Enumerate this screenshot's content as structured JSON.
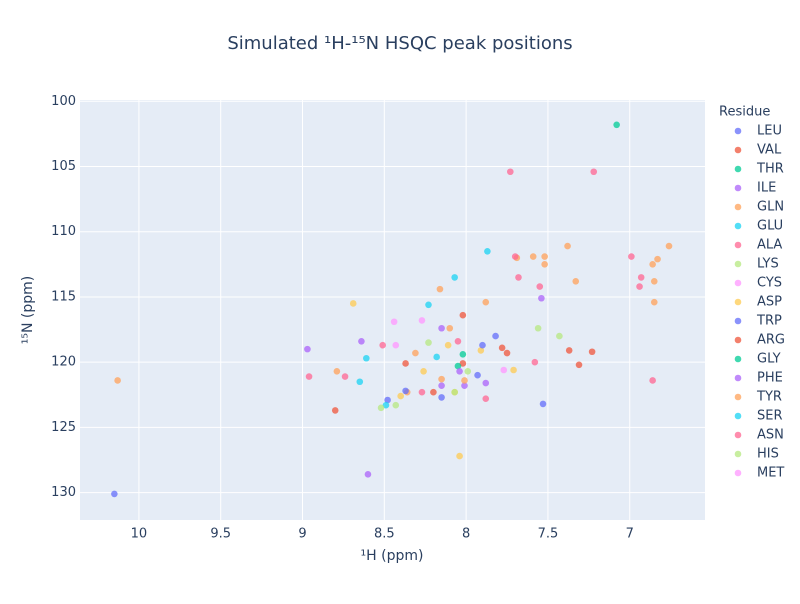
{
  "chart_data": {
    "type": "scatter",
    "title": "Simulated ¹H-¹⁵N HSQC peak positions",
    "x_label": "¹H (ppm)",
    "y_label": "¹⁵N (ppm)",
    "legend_title": "Residue",
    "xlim": [
      10.36,
      6.54
    ],
    "ylim": [
      132.1,
      99.9
    ],
    "xticks": [
      10,
      9.5,
      9,
      8.5,
      8,
      7.5,
      7
    ],
    "yticks": [
      100,
      105,
      110,
      115,
      120,
      125,
      130
    ],
    "grid": true,
    "legend": "right",
    "series": [
      {
        "name": "LEU",
        "color": "#636efa",
        "x": [
          10.15,
          8.48,
          7.53,
          7.93
        ],
        "y": [
          130.1,
          122.9,
          123.2,
          121.0
        ]
      },
      {
        "name": "VAL",
        "color": "#EF553B",
        "x": [
          8.8,
          8.37,
          8.02,
          7.37,
          7.31
        ],
        "y": [
          123.7,
          120.1,
          120.1,
          119.1,
          120.2
        ]
      },
      {
        "name": "THR",
        "color": "#00cc96",
        "x": [
          7.08,
          8.02
        ],
        "y": [
          101.8,
          119.4
        ]
      },
      {
        "name": "ILE",
        "color": "#ab63fa",
        "x": [
          8.6,
          8.97,
          8.64,
          7.54,
          8.15
        ],
        "y": [
          128.6,
          119.0,
          118.4,
          115.1,
          121.8
        ]
      },
      {
        "name": "GLN",
        "color": "#FFA15A",
        "x": [
          10.13,
          8.16,
          8.31,
          7.88,
          7.69,
          7.52,
          7.33,
          6.85,
          6.76,
          8.36
        ],
        "y": [
          121.4,
          114.4,
          119.3,
          115.4,
          112.0,
          112.5,
          113.8,
          115.4,
          111.1,
          122.3
        ]
      },
      {
        "name": "GLU",
        "color": "#19d3f3",
        "x": [
          7.87,
          8.07,
          8.23,
          8.61
        ],
        "y": [
          111.5,
          113.5,
          115.6,
          119.7
        ]
      },
      {
        "name": "ALA",
        "color": "#FF6692",
        "x": [
          7.73,
          7.7,
          7.68,
          7.55,
          8.96,
          8.51,
          7.88,
          7.58
        ],
        "y": [
          105.4,
          111.9,
          113.5,
          114.2,
          121.1,
          118.7,
          122.8,
          120.0
        ]
      },
      {
        "name": "LYS",
        "color": "#B6E880",
        "x": [
          7.56,
          7.43,
          8.23
        ],
        "y": [
          117.4,
          118.0,
          118.5
        ]
      },
      {
        "name": "CYS",
        "color": "#FF97FF",
        "x": [
          8.44,
          8.27
        ],
        "y": [
          116.9,
          116.8
        ]
      },
      {
        "name": "ASP",
        "color": "#FECB52",
        "x": [
          8.69,
          8.04,
          8.4,
          8.26,
          8.11,
          7.91,
          7.71,
          8.07
        ],
        "y": [
          115.5,
          127.2,
          122.6,
          120.7,
          118.7,
          119.1,
          120.6,
          122.3
        ]
      },
      {
        "name": "TRP",
        "color": "#636efa",
        "x": [
          7.9,
          7.82,
          8.15,
          8.37
        ],
        "y": [
          118.7,
          118.0,
          122.7,
          122.2
        ]
      },
      {
        "name": "ARG",
        "color": "#EF553B",
        "x": [
          8.02,
          7.78,
          7.75,
          7.23,
          8.2
        ],
        "y": [
          116.4,
          118.9,
          119.3,
          119.2,
          122.3
        ]
      },
      {
        "name": "GLY",
        "color": "#00cc96",
        "x": [
          8.05
        ],
        "y": [
          120.3
        ]
      },
      {
        "name": "PHE",
        "color": "#ab63fa",
        "x": [
          7.88,
          8.04,
          8.01,
          8.15
        ],
        "y": [
          121.6,
          120.7,
          121.8,
          117.4
        ]
      },
      {
        "name": "TYR",
        "color": "#FFA15A",
        "x": [
          8.1,
          8.79,
          7.59,
          7.52,
          7.38,
          6.86,
          6.83,
          6.85,
          8.01,
          8.15
        ],
        "y": [
          117.4,
          120.7,
          111.9,
          111.9,
          111.1,
          112.5,
          112.1,
          113.8,
          121.4,
          121.3
        ]
      },
      {
        "name": "SER",
        "color": "#19d3f3",
        "x": [
          8.18,
          8.65,
          8.49
        ],
        "y": [
          119.6,
          121.5,
          123.3
        ]
      },
      {
        "name": "ASN",
        "color": "#FF6692",
        "x": [
          7.22,
          6.99,
          6.93,
          6.94,
          6.86,
          8.74,
          8.05,
          8.27
        ],
        "y": [
          105.4,
          111.9,
          113.5,
          114.2,
          121.4,
          121.1,
          118.4,
          122.3
        ]
      },
      {
        "name": "HIS",
        "color": "#B6E880",
        "x": [
          8.52,
          8.43,
          7.99,
          8.07
        ],
        "y": [
          123.5,
          123.3,
          120.7,
          122.3
        ]
      },
      {
        "name": "MET",
        "color": "#FF97FF",
        "x": [
          8.43,
          7.77
        ],
        "y": [
          118.7,
          120.6
        ]
      }
    ]
  }
}
